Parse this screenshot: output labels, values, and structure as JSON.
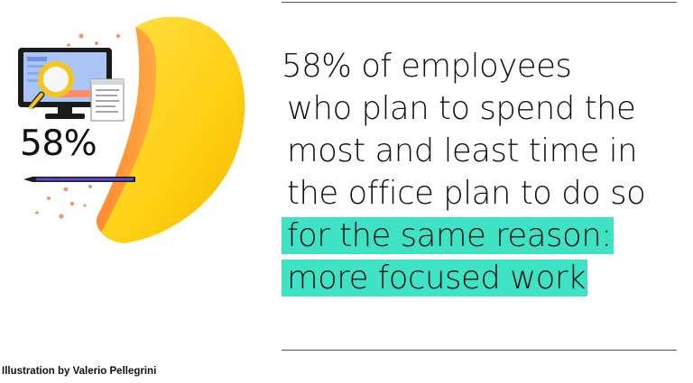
{
  "illustration": {
    "stat": "58%",
    "colors": {
      "yellow": "#ffd21f",
      "orange": "#ff8c3a",
      "dots": "#f5946a",
      "screen": "#a9c4f5",
      "monitor": "#1b1b1b",
      "magnifier": "#f5c61e",
      "pencil": "#5b4bd3"
    }
  },
  "headline": {
    "lines": [
      "58% of employees",
      "who plan to spend the",
      "most and least time in",
      "the office plan to do so"
    ],
    "highlight_lines": [
      "for the same reason:",
      "more focused work"
    ],
    "highlight_color": "#3de3c4"
  },
  "credit": "Illustration by Valerio Pellegrini"
}
